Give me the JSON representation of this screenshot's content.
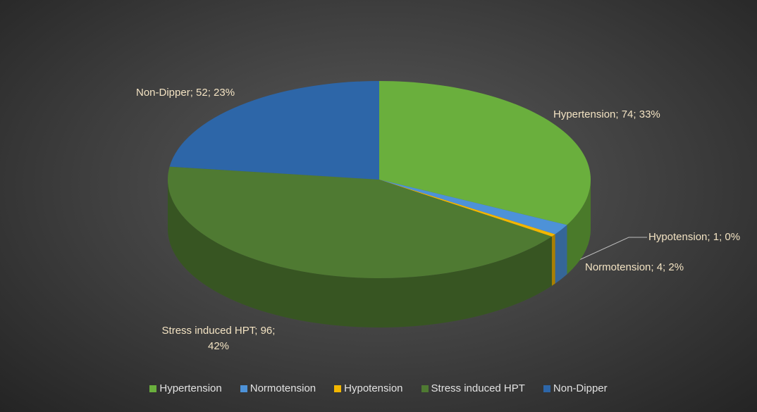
{
  "chart_data": {
    "type": "pie",
    "categories": [
      "Hypertension",
      "Normotension",
      "Hypotension",
      "Stress induced HPT",
      "Non-Dipper"
    ],
    "values": [
      74,
      4,
      1,
      96,
      52
    ],
    "value_labels": [
      "Hypertension; 74; 33%",
      "Normotension; 4; 2%",
      "Hypotension; 1; 0%",
      "Stress induced HPT; 96; 42%",
      "Non-Dipper; 52; 23%"
    ],
    "colors": [
      "#6aaf3d",
      "#4d92d8",
      "#f2b600",
      "#4f7a32",
      "#2d66a8"
    ],
    "legend": "bottom"
  }
}
